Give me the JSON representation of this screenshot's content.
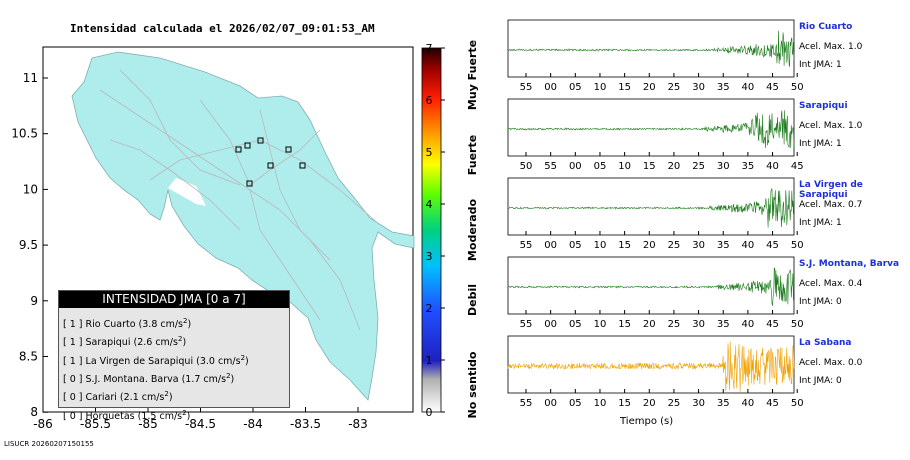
{
  "title": "Intensidad calculada el 2026/02/07_09:01:53_AM",
  "footer": "LISUCR 20260207150155",
  "map": {
    "x_ticks": [
      "-86",
      "-85.5",
      "-85",
      "-84.5",
      "-84",
      "-83.5",
      "-83"
    ],
    "y_ticks": [
      "11",
      "10.5",
      "10",
      "9.5",
      "9",
      "8.5",
      "8"
    ]
  },
  "colorbar": {
    "ticks": [
      "0",
      "1",
      "2",
      "3",
      "4",
      "5",
      "6",
      "7"
    ],
    "labels": [
      "No sentido",
      "Debil",
      "Moderado",
      "Fuerte",
      "Muy Fuerte"
    ]
  },
  "legend": {
    "header": "INTENSIDAD JMA [0 a 7]",
    "rows": [
      {
        "jma": "[ 1 ]",
        "name": "Rio Cuarto",
        "accel": "(3.8 cm/s",
        "sup": "2",
        "close": ")"
      },
      {
        "jma": "[ 1 ]",
        "name": "Sarapiqui",
        "accel": "(2.6 cm/s",
        "sup": "2",
        "close": ")"
      },
      {
        "jma": "[ 1 ]",
        "name": "La Virgen de Sarapiqui",
        "accel": "(3.0 cm/s",
        "sup": "2",
        "close": ")"
      },
      {
        "jma": "[ 0 ]",
        "name": "S.J. Montana. Barva",
        "accel": "(1.7 cm/s",
        "sup": "2",
        "close": ")"
      },
      {
        "jma": "[ 0 ]",
        "name": "Cariari",
        "accel": "(2.1 cm/s",
        "sup": "2",
        "close": ")"
      },
      {
        "jma": "[ 0 ]",
        "name": "Horquetas",
        "accel": "(1.5 cm/s",
        "sup": "2",
        "close": ")"
      }
    ]
  },
  "chart_data": {
    "type": "line",
    "xlabel": "Tiempo (s)",
    "traces": [
      {
        "name": "Rio Cuarto",
        "accel": "Acel. Max. 1.0",
        "jma": "Int JMA: 1",
        "color": "#1a7a1a",
        "ticks": [
          "55",
          "00",
          "05",
          "10",
          "15",
          "20",
          "25",
          "30",
          "35",
          "40",
          "45",
          "50"
        ],
        "onset": 0.72,
        "peak": 0.97
      },
      {
        "name": "Sarapiqui",
        "accel": "Acel. Max. 1.0",
        "jma": "Int JMA: 1",
        "color": "#1a7a1a",
        "ticks": [
          "50",
          "55",
          "00",
          "05",
          "10",
          "15",
          "20",
          "25",
          "30",
          "35",
          "40",
          "45"
        ],
        "onset": 0.68,
        "peak": 0.88
      },
      {
        "name": "La Virgen de Sarapiqui",
        "accel": "Acel. Max. 0.7",
        "jma": "Int JMA: 1",
        "color": "#1a7a1a",
        "ticks": [
          "55",
          "00",
          "05",
          "10",
          "15",
          "20",
          "25",
          "30",
          "35",
          "40",
          "45",
          "50"
        ],
        "onset": 0.7,
        "peak": 0.93
      },
      {
        "name": "S.J. Montana, Barva",
        "accel": "Acel. Max. 0.4",
        "jma": "Int JMA: 0",
        "color": "#1a7a1a",
        "ticks": [
          "55",
          "00",
          "05",
          "10",
          "15",
          "20",
          "25",
          "30",
          "35",
          "40",
          "45",
          "50"
        ],
        "onset": 0.73,
        "peak": 0.95
      },
      {
        "name": "La Sabana",
        "accel": "Acel. Max. 0.0",
        "jma": "Int JMA: 0",
        "color": "#f0a000",
        "ticks": [
          "55",
          "00",
          "05",
          "10",
          "15",
          "20",
          "25",
          "30",
          "35",
          "40",
          "45",
          "50"
        ],
        "onset": 0.75,
        "peak": 0.78
      }
    ]
  }
}
